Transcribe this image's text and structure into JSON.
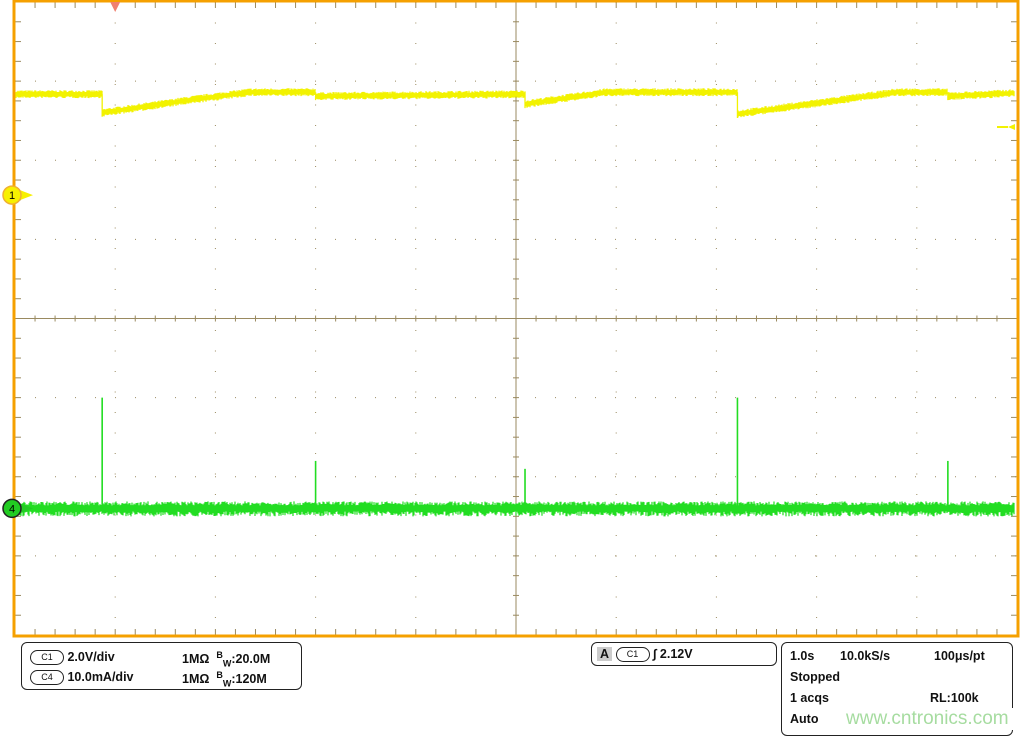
{
  "chart_data": {
    "type": "line",
    "grid": true,
    "xlim": [
      0,
      10
    ],
    "x_divisions": 10,
    "y_divisions": 8,
    "trigger_marker_time_s": 1.0,
    "series": [
      {
        "name": "C1",
        "unit": "V",
        "color": "#f2f200",
        "volts_per_div": 2.0,
        "ground_div_from_top": 2.44,
        "label": "1",
        "points": [
          [
            0,
            2.55
          ],
          [
            0.87,
            2.55
          ],
          [
            0.87,
            2.08
          ],
          [
            1.8,
            2.42
          ],
          [
            2.35,
            2.6
          ],
          [
            3.0,
            2.6
          ],
          [
            3.0,
            2.5
          ],
          [
            5.09,
            2.55
          ],
          [
            5.09,
            2.3
          ],
          [
            5.9,
            2.6
          ],
          [
            7.21,
            2.6
          ],
          [
            7.21,
            2.05
          ],
          [
            8.8,
            2.6
          ],
          [
            9.31,
            2.6
          ],
          [
            9.31,
            2.5
          ],
          [
            10,
            2.58
          ]
        ]
      },
      {
        "name": "C4",
        "unit": "mA",
        "color": "#22dd22",
        "ma_per_div": 10.0,
        "ground_div_from_top": 6.4,
        "label": "4",
        "baseline": 0,
        "spikes": [
          [
            0.87,
            14
          ],
          [
            3.0,
            6
          ],
          [
            5.09,
            5
          ],
          [
            7.21,
            14
          ],
          [
            9.31,
            6
          ]
        ]
      }
    ]
  },
  "colors": {
    "frame": "#f5a000",
    "grid": "#9a8a60",
    "c1": "#f2f200",
    "c4": "#22dd22",
    "trigger": "#f08070"
  },
  "channels": [
    {
      "id": "C1",
      "scale": "2.0V/div",
      "impedance": "1MΩ",
      "bw_b": "B",
      "bw_w": "W",
      "bw": ":20.0M"
    },
    {
      "id": "C4",
      "scale": "10.0mA/div",
      "impedance": "1MΩ",
      "bw_b": "B",
      "bw_w": "W",
      "bw": ":120M"
    }
  ],
  "trigger": {
    "mode": "A",
    "source": "C1",
    "level": "2.12V"
  },
  "acquisition": {
    "timebase": "1.0s",
    "sample_rate": "10.0kS/s",
    "resolution": "100μs/pt",
    "state": "Stopped",
    "acqs": "1 acqs",
    "record_length": "RL:100k",
    "trigger_mode": "Auto"
  },
  "watermark": "www.cntronics.com"
}
